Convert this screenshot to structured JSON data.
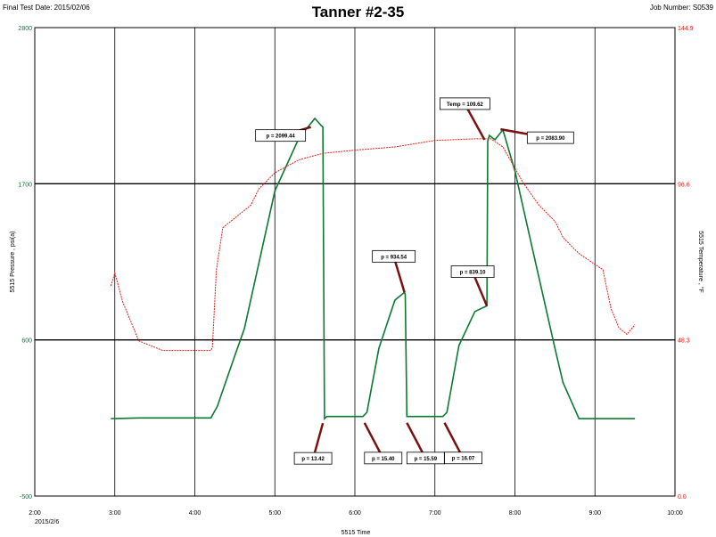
{
  "header": {
    "test_date": "Final Test Date: 2015/02/06",
    "job_number": "Job Number: S0539"
  },
  "colors": {
    "pressure": "#0a7a32",
    "temperature": "#e0201c",
    "callout_arrow": "#7a1010",
    "grid": "#000000"
  },
  "chart_data": {
    "type": "line",
    "title": "Tanner #2-35",
    "xlabel": "5515 Time",
    "x_tick_labels": [
      "2:00",
      "3:00",
      "4:00",
      "5:00",
      "6:00",
      "7:00",
      "8:00",
      "9:00",
      "10:00"
    ],
    "x_date_label": "2015/2/6",
    "xlim": [
      "2:00",
      "10:00"
    ],
    "grid": true,
    "y_left": {
      "label": "5515 Pressure , psi(a)",
      "ylim": [
        -500,
        2800
      ],
      "tick_labels": [
        "2800",
        "1700",
        "600",
        "-500"
      ],
      "ticks": [
        2800,
        1700,
        600,
        -500
      ]
    },
    "y_right": {
      "label": "5515 Temperature , °F",
      "ylim": [
        0.0,
        144.9
      ],
      "tick_labels": [
        "144.9",
        "96.6",
        "48.3",
        "0.0"
      ],
      "ticks": [
        144.9,
        96.6,
        48.3,
        0.0
      ]
    },
    "series": [
      {
        "axis": "left",
        "x": [
          2.95,
          3.3,
          4.2,
          4.28,
          4.5,
          4.62,
          5.0,
          5.3,
          5.5,
          5.58,
          5.6,
          5.62,
          5.65,
          6.0,
          6.1,
          6.15,
          6.3,
          6.5,
          6.62,
          6.63,
          6.65,
          7.0,
          7.1,
          7.15,
          7.3,
          7.5,
          7.65,
          7.66,
          7.68,
          7.75,
          7.85,
          8.0,
          8.2,
          8.5,
          8.6,
          8.8,
          9.0,
          9.5
        ],
        "y": [
          45,
          50,
          50,
          130,
          490,
          680,
          1650,
          2020,
          2160,
          2110,
          2100,
          45,
          60,
          60,
          60,
          90,
          540,
          880,
          935,
          920,
          60,
          60,
          60,
          90,
          560,
          800,
          840,
          2000,
          2040,
          2010,
          2080,
          1790,
          1290,
          540,
          300,
          45,
          45,
          45
        ]
      },
      {
        "axis": "right",
        "x": [
          2.95,
          3.0,
          3.1,
          3.3,
          3.6,
          4.2,
          4.22,
          4.27,
          4.35,
          4.6,
          4.7,
          4.8,
          5.0,
          5.3,
          5.6,
          6.0,
          6.5,
          7.0,
          7.5,
          7.7,
          7.85,
          8.1,
          8.3,
          8.5,
          8.6,
          8.8,
          9.1,
          9.2,
          9.3,
          9.4,
          9.5
        ],
        "y": [
          65,
          69,
          60,
          48,
          45,
          45,
          46,
          70,
          83,
          88,
          90,
          95,
          100,
          104,
          106,
          107,
          108,
          110,
          110.5,
          110.5,
          108,
          97,
          90,
          85,
          80,
          75,
          70,
          58,
          52,
          50,
          53
        ]
      }
    ],
    "annotations": [
      {
        "text": "p = 2099.44",
        "x": 5.45,
        "y": 2099.44
      },
      {
        "text": "Temp = 109.62",
        "x": 7.62,
        "y": 2010
      },
      {
        "text": "p = 2083.90",
        "x": 7.82,
        "y": 2083.9
      },
      {
        "text": "p = 934.54",
        "x": 6.62,
        "y": 934.54
      },
      {
        "text": "p = 839.10",
        "x": 7.65,
        "y": 839.1
      },
      {
        "text": "p = 13.42",
        "x": 5.6,
        "y": 13.42
      },
      {
        "text": "p = 15.40",
        "x": 6.12,
        "y": 15.4
      },
      {
        "text": "p = 15.59",
        "x": 6.65,
        "y": 15.59
      },
      {
        "text": "p = 16.07",
        "x": 7.12,
        "y": 16.07
      }
    ]
  }
}
